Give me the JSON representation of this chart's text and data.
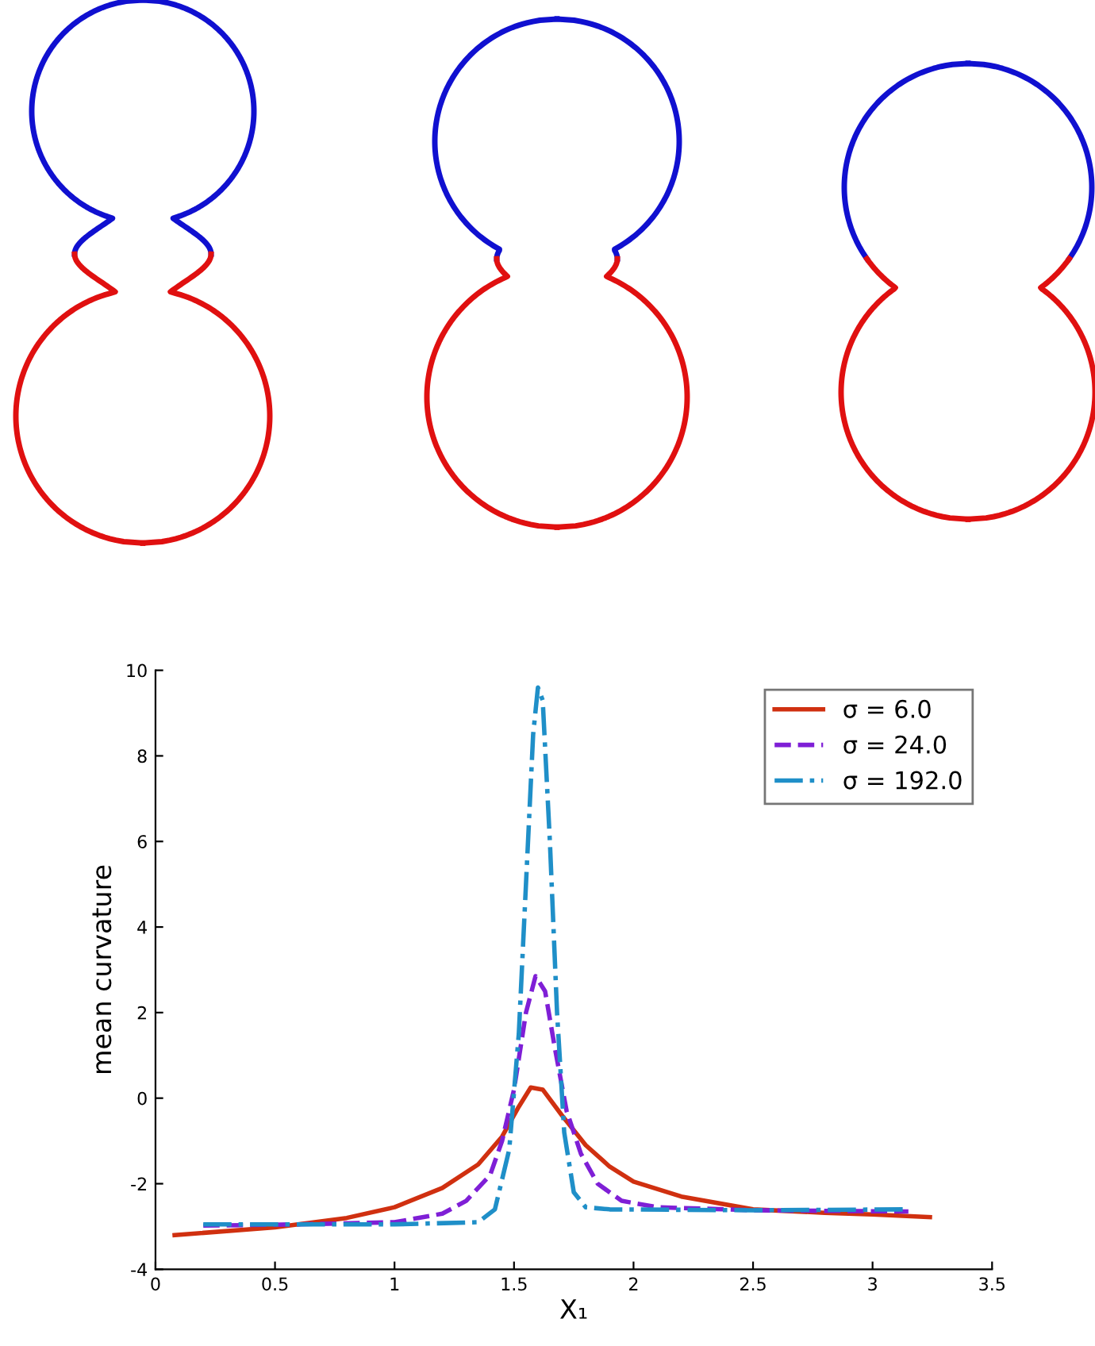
{
  "chart_data": {
    "type": "line",
    "xlabel": "X₁",
    "ylabel": "mean curvature",
    "xlim": [
      0,
      3.5
    ],
    "ylim": [
      -4,
      10
    ],
    "xticks": [
      0,
      0.5,
      1,
      1.5,
      2,
      2.5,
      3,
      3.5
    ],
    "yticks": [
      -4,
      -2,
      0,
      2,
      4,
      6,
      8,
      10
    ],
    "grid": false,
    "legend": "top right",
    "marker": "none",
    "series": [
      {
        "name": "σ = 6.0",
        "color": "#d03010",
        "line_style": "solid",
        "x": [
          0.08,
          0.5,
          0.8,
          1.0,
          1.2,
          1.35,
          1.45,
          1.52,
          1.57,
          1.62,
          1.7,
          1.8,
          1.9,
          2.0,
          2.2,
          2.5,
          2.8,
          3.0,
          3.24
        ],
        "values": [
          -3.2,
          -3.02,
          -2.8,
          -2.55,
          -2.1,
          -1.55,
          -0.9,
          -0.2,
          0.25,
          0.2,
          -0.4,
          -1.1,
          -1.6,
          -1.95,
          -2.3,
          -2.6,
          -2.68,
          -2.72,
          -2.78
        ]
      },
      {
        "name": "σ = 24.0",
        "color": "#7f1fd6",
        "line_style": "dashed",
        "x": [
          0.2,
          0.6,
          1.0,
          1.2,
          1.3,
          1.4,
          1.45,
          1.5,
          1.55,
          1.59,
          1.63,
          1.67,
          1.72,
          1.78,
          1.85,
          1.95,
          2.1,
          2.5,
          3.15
        ],
        "values": [
          -2.98,
          -2.95,
          -2.9,
          -2.7,
          -2.4,
          -1.8,
          -1.0,
          0.2,
          2.0,
          2.85,
          2.5,
          1.2,
          -0.3,
          -1.3,
          -2.0,
          -2.4,
          -2.55,
          -2.62,
          -2.65
        ]
      },
      {
        "name": "σ = 192.0",
        "color": "#1f8fc8",
        "line_style": "dashdot",
        "x": [
          0.2,
          1.0,
          1.35,
          1.42,
          1.48,
          1.52,
          1.55,
          1.58,
          1.6,
          1.62,
          1.65,
          1.68,
          1.71,
          1.75,
          1.8,
          1.9,
          2.5,
          3.15
        ],
        "values": [
          -2.95,
          -2.95,
          -2.9,
          -2.6,
          -1.2,
          1.5,
          5.0,
          8.5,
          9.6,
          9.3,
          6.0,
          2.0,
          -0.8,
          -2.2,
          -2.55,
          -2.6,
          -2.62,
          -2.6
        ]
      }
    ]
  }
}
